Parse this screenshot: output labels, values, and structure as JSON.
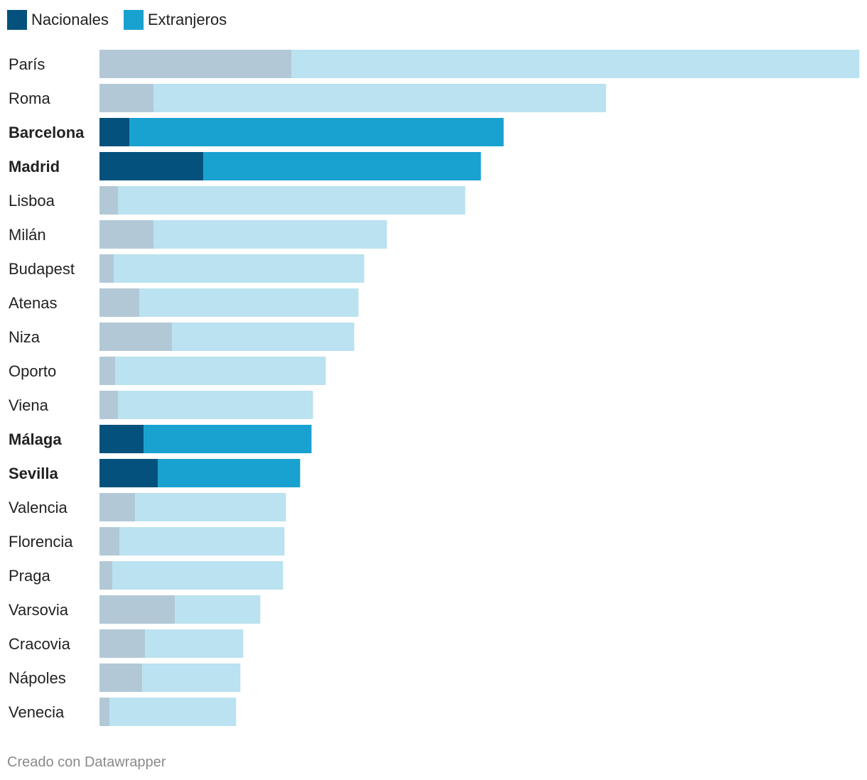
{
  "legend": {
    "nacionales_label": "Nacionales",
    "extranjeros_label": "Extranjeros"
  },
  "colors": {
    "nacionales_highlight": "#03517c",
    "extranjeros_highlight": "#19a1cf",
    "nacionales_muted": "#b2c8d6",
    "extranjeros_muted": "#bae2f0",
    "label_text": "#222222"
  },
  "footer": {
    "credit": "Creado con Datawrapper"
  },
  "chart_data": {
    "type": "bar",
    "orientation": "horizontal",
    "stacked": true,
    "title": "",
    "xlabel": "",
    "ylabel": "",
    "xlim": [
      0,
      16
    ],
    "grid": false,
    "legend_position": "top-left",
    "categories": [
      "París",
      "Roma",
      "Barcelona",
      "Madrid",
      "Lisboa",
      "Milán",
      "Budapest",
      "Atenas",
      "Niza",
      "Oporto",
      "Viena",
      "Málaga",
      "Sevilla",
      "Valencia",
      "Florencia",
      "Praga",
      "Varsovia",
      "Cracovia",
      "Nápoles",
      "Venecia"
    ],
    "highlighted": [
      "Barcelona",
      "Madrid",
      "Málaga",
      "Sevilla"
    ],
    "series": [
      {
        "name": "Nacionales",
        "values": [
          4.05,
          1.14,
          0.63,
          2.19,
          0.39,
          1.14,
          0.3,
          0.84,
          1.53,
          0.33,
          0.39,
          0.93,
          1.23,
          0.75,
          0.42,
          0.27,
          1.59,
          0.96,
          0.9,
          0.21
        ]
      },
      {
        "name": "Extranjeros",
        "values": [
          11.97,
          9.54,
          7.89,
          5.85,
          7.32,
          4.92,
          5.28,
          4.62,
          3.84,
          4.44,
          4.11,
          3.54,
          3.0,
          3.18,
          3.48,
          3.6,
          1.8,
          2.07,
          2.07,
          2.67
        ]
      }
    ]
  }
}
